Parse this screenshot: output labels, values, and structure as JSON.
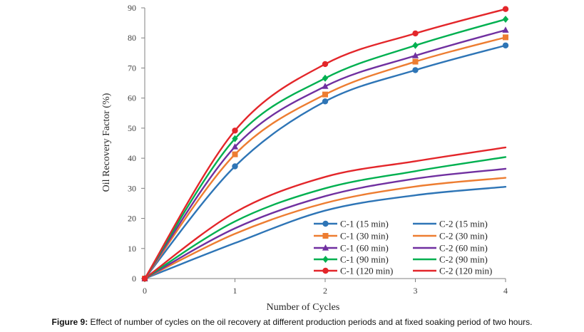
{
  "chart_data": {
    "type": "line",
    "xlabel": "Number of Cycles",
    "ylabel": "Oil Recovery Factor (%)",
    "xlim": [
      0,
      4
    ],
    "ylim": [
      0,
      90
    ],
    "x_ticks": [
      "0",
      "1",
      "2",
      "3",
      "4"
    ],
    "y_ticks": [
      "0",
      "10",
      "20",
      "30",
      "40",
      "50",
      "60",
      "70",
      "80",
      "90"
    ],
    "grid": false,
    "legend_position": "bottom-right",
    "x": [
      0,
      1,
      2,
      3,
      4
    ],
    "series": [
      {
        "name": "C-1 (15 min)",
        "color": "#2e75b6",
        "marker": "circle",
        "values": [
          0,
          37.3,
          58.9,
          69.3,
          77.5
        ]
      },
      {
        "name": "C-2 (15 min)",
        "color": "#2e75b6",
        "marker": "none",
        "values": [
          0,
          11.8,
          22.6,
          27.7,
          30.5
        ]
      },
      {
        "name": "C-1 (30 min)",
        "color": "#ed7d31",
        "marker": "square",
        "values": [
          0,
          41.3,
          61.2,
          72.1,
          80.2
        ]
      },
      {
        "name": "C-2 (30 min)",
        "color": "#ed7d31",
        "marker": "none",
        "values": [
          0,
          14.9,
          25.1,
          30.6,
          33.5
        ]
      },
      {
        "name": "C-1 (60 min)",
        "color": "#7030a0",
        "marker": "triangle",
        "values": [
          0,
          43.8,
          63.9,
          74.1,
          82.6
        ]
      },
      {
        "name": "C-2 (60 min)",
        "color": "#7030a0",
        "marker": "none",
        "values": [
          0,
          16.7,
          27.4,
          33.2,
          36.5
        ]
      },
      {
        "name": "C-1 (90 min)",
        "color": "#00b050",
        "marker": "diamond",
        "values": [
          0,
          46.5,
          66.6,
          77.5,
          86.2
        ]
      },
      {
        "name": "C-2 (90 min)",
        "color": "#00b050",
        "marker": "none",
        "values": [
          0,
          19.0,
          30.0,
          35.7,
          40.4
        ]
      },
      {
        "name": "C-1 (120 min)",
        "color": "#e3262a",
        "marker": "circle",
        "values": [
          0,
          49.2,
          71.3,
          81.5,
          89.6
        ]
      },
      {
        "name": "C-2 (120 min)",
        "color": "#e3262a",
        "marker": "none",
        "values": [
          0,
          22.0,
          33.8,
          39.0,
          43.6
        ]
      }
    ]
  },
  "caption": {
    "label": "Figure 9:",
    "text": " Effect of number of cycles on the oil recovery at different production periods and at fixed soaking period of two hours."
  }
}
